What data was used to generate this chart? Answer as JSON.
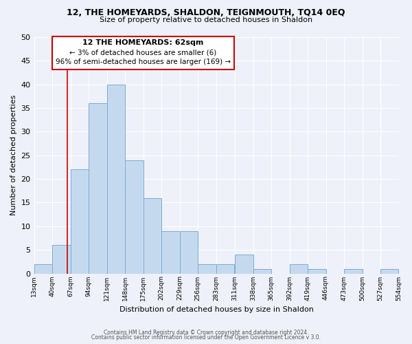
{
  "title": "12, THE HOMEYARDS, SHALDON, TEIGNMOUTH, TQ14 0EQ",
  "subtitle": "Size of property relative to detached houses in Shaldon",
  "xlabel": "Distribution of detached houses by size in Shaldon",
  "ylabel": "Number of detached properties",
  "bar_color": "#c5d9ee",
  "bar_edge_color": "#7aadd4",
  "marker_color": "#cc0000",
  "marker_value": 62,
  "bin_edges": [
    13,
    40,
    67,
    94,
    121,
    148,
    175,
    202,
    229,
    256,
    283,
    311,
    338,
    365,
    392,
    419,
    446,
    473,
    500,
    527,
    554
  ],
  "bin_labels": [
    "13sqm",
    "40sqm",
    "67sqm",
    "94sqm",
    "121sqm",
    "148sqm",
    "175sqm",
    "202sqm",
    "229sqm",
    "256sqm",
    "283sqm",
    "311sqm",
    "338sqm",
    "365sqm",
    "392sqm",
    "419sqm",
    "446sqm",
    "473sqm",
    "500sqm",
    "527sqm",
    "554sqm"
  ],
  "counts": [
    2,
    6,
    22,
    36,
    40,
    24,
    16,
    9,
    9,
    2,
    2,
    4,
    1,
    0,
    2,
    1,
    0,
    1,
    0,
    1
  ],
  "ylim": [
    0,
    50
  ],
  "yticks": [
    0,
    5,
    10,
    15,
    20,
    25,
    30,
    35,
    40,
    45,
    50
  ],
  "annotation_title": "12 THE HOMEYARDS: 62sqm",
  "annotation_line1": "← 3% of detached houses are smaller (6)",
  "annotation_line2": "96% of semi-detached houses are larger (169) →",
  "footer1": "Contains HM Land Registry data © Crown copyright and database right 2024.",
  "footer2": "Contains public sector information licensed under the Open Government Licence v 3.0.",
  "background_color": "#eef1f9",
  "grid_color": "#ffffff"
}
